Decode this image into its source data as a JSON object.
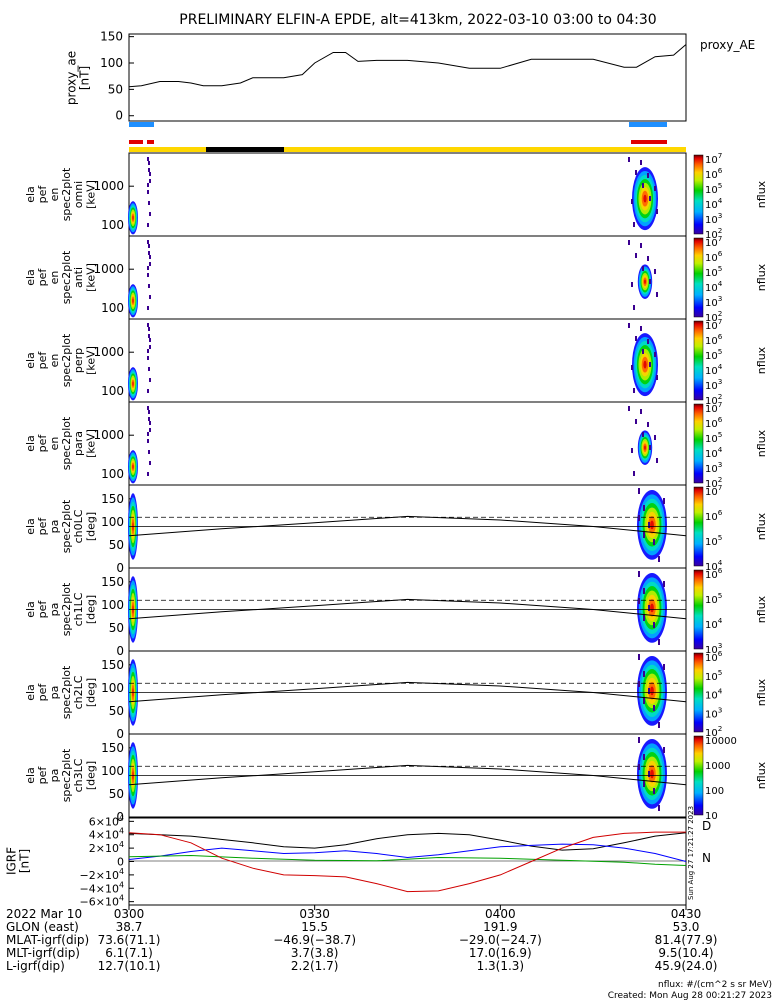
{
  "title": "PRELIMINARY ELFIN-A EPDE, alt=413km, 2022-03-10 03:00 to 04:30",
  "colors": {
    "line": "#000000",
    "blue_bar": "#1e8fff",
    "red_bar": "#e00000",
    "yellow_bar": "#ffd700",
    "black_bar": "#000000",
    "bx": "#000000",
    "by": "#0000ff",
    "bz": "#00a000",
    "bt": "#d00000"
  },
  "chart_data": [
    {
      "type": "line",
      "panel": "proxy_ae",
      "ylabel": "proxy_ae\n[nT]",
      "series_label": "proxy_AE",
      "ylim": [
        -10,
        155
      ],
      "yticks": [
        "150",
        "100",
        "50",
        "0"
      ],
      "x": [
        0,
        2,
        5,
        8,
        10,
        12,
        15,
        18,
        20,
        22,
        25,
        28,
        30,
        33,
        35,
        37,
        40,
        45,
        50,
        55,
        60,
        65,
        70,
        75,
        80,
        82,
        85,
        88,
        90
      ],
      "y": [
        55,
        57,
        65,
        65,
        62,
        57,
        57,
        62,
        72,
        72,
        72,
        78,
        100,
        120,
        120,
        103,
        105,
        105,
        100,
        90,
        90,
        107,
        107,
        107,
        92,
        92,
        112,
        115,
        135
      ]
    },
    {
      "type": "heatmap",
      "panel": "omni",
      "ylabel": "ela\npef\nen\nspec2plot\nomni\n[keV]",
      "yticks": [
        "1000",
        "100"
      ],
      "cbar_label": "nflux",
      "cbar_ticks": [
        "10^7",
        "10^6",
        "10^5",
        "10^4",
        "10^3",
        "10^2"
      ]
    },
    {
      "type": "heatmap",
      "panel": "anti",
      "ylabel": "ela\npef\nen\nspec2plot\nanti\n[keV]",
      "yticks": [
        "1000",
        "100"
      ],
      "cbar_label": "nflux",
      "cbar_ticks": [
        "10^7",
        "10^6",
        "10^5",
        "10^4",
        "10^3",
        "10^2"
      ]
    },
    {
      "type": "heatmap",
      "panel": "perp",
      "ylabel": "ela\npef\nen\nspec2plot\nperp\n[keV]",
      "yticks": [
        "1000",
        "100"
      ],
      "cbar_label": "nflux",
      "cbar_ticks": [
        "10^7",
        "10^6",
        "10^5",
        "10^4",
        "10^3",
        "10^2"
      ]
    },
    {
      "type": "heatmap",
      "panel": "para",
      "ylabel": "ela\npef\nen\nspec2plot\npara\n[keV]",
      "yticks": [
        "1000",
        "100"
      ],
      "cbar_label": "nflux",
      "cbar_ticks": [
        "10^7",
        "10^6",
        "10^5",
        "10^4",
        "10^3",
        "10^2"
      ]
    },
    {
      "type": "heatmap",
      "panel": "ch0LC",
      "ylabel": "ela\npef\npa\nspec2plot\nch0LC\n[deg]",
      "ylim": [
        0,
        180
      ],
      "yticks": [
        "150",
        "100",
        "50",
        "0"
      ],
      "cbar_label": "nflux",
      "cbar_ticks": [
        "10^7",
        "10^6",
        "10^5",
        "10^4"
      ]
    },
    {
      "type": "heatmap",
      "panel": "ch1LC",
      "ylabel": "ela\npef\npa\nspec2plot\nch1LC\n[deg]",
      "ylim": [
        0,
        180
      ],
      "yticks": [
        "150",
        "100",
        "50",
        "0"
      ],
      "cbar_label": "nflux",
      "cbar_ticks": [
        "10^6",
        "10^5",
        "10^4",
        "10^3"
      ]
    },
    {
      "type": "heatmap",
      "panel": "ch2LC",
      "ylabel": "ela\npef\npa\nspec2plot\nch2LC\n[deg]",
      "ylim": [
        0,
        180
      ],
      "yticks": [
        "150",
        "100",
        "50",
        "0"
      ],
      "cbar_label": "nflux",
      "cbar_ticks": [
        "10^6",
        "10^5",
        "10^4",
        "10^3",
        "10^2"
      ]
    },
    {
      "type": "heatmap",
      "panel": "ch3LC",
      "ylabel": "ela\npef\npa\nspec2plot\nch3LC\n[deg]",
      "ylim": [
        0,
        180
      ],
      "yticks": [
        "150",
        "100",
        "50",
        "0"
      ],
      "cbar_label": "nflux",
      "cbar_ticks": [
        "10000",
        "1000",
        "100",
        "10"
      ]
    },
    {
      "type": "line",
      "panel": "igrf",
      "ylabel": "IGRF\n[nT]",
      "ylim": [
        -65000,
        65000
      ],
      "yticks": [
        "6×10^4",
        "4×10^4",
        "2×10^4",
        "0",
        "−2×10^4",
        "−4×10^4",
        "−6×10^4"
      ],
      "legend": [
        "D",
        "N"
      ],
      "side_text": "Sun Aug 27 17:21:27 2023",
      "series": [
        {
          "name": "Bx",
          "x": [
            0,
            10,
            20,
            25,
            30,
            35,
            40,
            45,
            50,
            55,
            60,
            65,
            70,
            75,
            80,
            85,
            90
          ],
          "y": [
            42000,
            38000,
            28000,
            22000,
            20000,
            25000,
            34000,
            40000,
            42000,
            40000,
            32000,
            23000,
            17000,
            19000,
            28000,
            38000,
            43000
          ]
        },
        {
          "name": "By",
          "x": [
            0,
            5,
            10,
            15,
            20,
            25,
            30,
            35,
            40,
            45,
            50,
            55,
            60,
            65,
            70,
            75,
            80,
            85,
            90
          ],
          "y": [
            3000,
            8000,
            15000,
            20000,
            16000,
            12000,
            13000,
            16000,
            12000,
            6000,
            10000,
            16000,
            22000,
            24000,
            26000,
            25000,
            20000,
            12000,
            0
          ]
        },
        {
          "name": "Bz",
          "x": [
            0,
            10,
            20,
            30,
            40,
            50,
            60,
            70,
            80,
            85,
            90
          ],
          "y": [
            7000,
            9000,
            5000,
            2000,
            1000,
            6000,
            5000,
            2000,
            -1000,
            -4000,
            -6000
          ]
        },
        {
          "name": "Bt",
          "x": [
            0,
            5,
            10,
            15,
            20,
            25,
            30,
            35,
            40,
            45,
            50,
            55,
            60,
            65,
            70,
            75,
            80,
            85,
            90
          ],
          "y": [
            43000,
            40000,
            28000,
            5000,
            -10000,
            -20000,
            -21000,
            -23000,
            -33000,
            -45000,
            -44000,
            -33000,
            -20000,
            0,
            20000,
            36000,
            42000,
            44000,
            44000
          ]
        }
      ]
    }
  ],
  "time_axis": {
    "labels": [
      "2022 Mar 10",
      "GLON (east)",
      "MLAT-igrf(dip)",
      "MLT-igrf(dip)",
      "L-igrf(dip)"
    ],
    "columns": [
      [
        "0300",
        "38.7",
        "73.6(71.1)",
        "6.1(7.1)",
        "12.7(10.1)"
      ],
      [
        "0330",
        "15.5",
        "−46.9(−38.7)",
        "3.7(3.8)",
        "2.2(1.7)"
      ],
      [
        "0400",
        "191.9",
        "−29.0(−24.7)",
        "17.0(16.9)",
        "1.3(1.3)"
      ],
      [
        "0430",
        "53.0",
        "81.4(77.9)",
        "9.5(10.4)",
        "45.9(24.0)"
      ]
    ]
  },
  "footer": {
    "units": "nflux: #/(cm^2 s sr MeV)",
    "created": "Created: Mon Aug 28 00:21:27 2023"
  }
}
